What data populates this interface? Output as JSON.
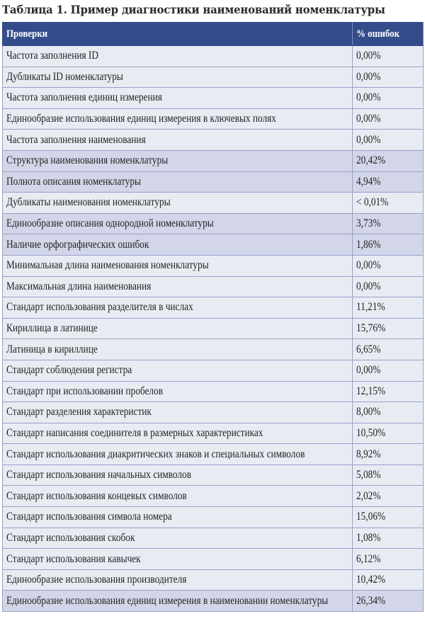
{
  "title": "Таблица 1. Пример диагностики наименований номенклатуры",
  "columns": [
    "Проверки",
    "% ошибок"
  ],
  "colors": {
    "header_bg": "#344c8b",
    "row_bg": "#e9ebf3",
    "highlight_row_bg": "#d3d6e8",
    "border": "#95a1cc"
  },
  "rows": [
    {
      "check": "Частота заполнения ID",
      "errors": "0,00%",
      "highlighted": false
    },
    {
      "check": "Дубликаты ID номенклатуры",
      "errors": "0,00%",
      "highlighted": false
    },
    {
      "check": "Частота заполнения единиц измерения",
      "errors": "0,00%",
      "highlighted": false
    },
    {
      "check": "Единообразие использования единиц измерения в ключевых полях",
      "errors": "0,00%",
      "highlighted": false
    },
    {
      "check": "Частота заполнения наименования",
      "errors": "0,00%",
      "highlighted": false
    },
    {
      "check": "Структура наименования номенклатуры",
      "errors": "20,42%",
      "highlighted": true
    },
    {
      "check": "Полнота описания номенклатуры",
      "errors": "4,94%",
      "highlighted": true
    },
    {
      "check": "Дубликаты наименования номенклатуры",
      "errors": "< 0,01%",
      "highlighted": false
    },
    {
      "check": "Единообразие описания однородной номенклатуры",
      "errors": "3,73%",
      "highlighted": true
    },
    {
      "check": "Наличие орфографических ошибок",
      "errors": "1,86%",
      "highlighted": true
    },
    {
      "check": "Минимальная длина наименования номенклатуры",
      "errors": "0,00%",
      "highlighted": false
    },
    {
      "check": "Максимальная длина наименования",
      "errors": "0,00%",
      "highlighted": false
    },
    {
      "check": "Стандарт использования разделителя в числах",
      "errors": "11,21%",
      "highlighted": false
    },
    {
      "check": "Кириллица в латинице",
      "errors": "15,76%",
      "highlighted": false
    },
    {
      "check": "Латиница в кириллице",
      "errors": "6,65%",
      "highlighted": false
    },
    {
      "check": "Стандарт соблюдения регистра",
      "errors": "0,00%",
      "highlighted": false
    },
    {
      "check": "Стандарт при использовании пробелов",
      "errors": "12,15%",
      "highlighted": false
    },
    {
      "check": "Стандарт разделения характеристик",
      "errors": "8,00%",
      "highlighted": false
    },
    {
      "check": "Стандарт написания соединителя в размерных характеристиках",
      "errors": "10,50%",
      "highlighted": false
    },
    {
      "check": "Стандарт использования диакритических знаков и специальных символов",
      "errors": "8,92%",
      "highlighted": false
    },
    {
      "check": "Стандарт использования начальных символов",
      "errors": "5,08%",
      "highlighted": false
    },
    {
      "check": "Стандарт использования концевых символов",
      "errors": "2,02%",
      "highlighted": false
    },
    {
      "check": "Стандарт использования символа номера",
      "errors": "15,06%",
      "highlighted": false
    },
    {
      "check": "Стандарт использования скобок",
      "errors": "1,08%",
      "highlighted": false
    },
    {
      "check": "Стандарт использования кавычек",
      "errors": "6,12%",
      "highlighted": false
    },
    {
      "check": "Единообразие использования производителя",
      "errors": "10,42%",
      "highlighted": false
    },
    {
      "check": "Единообразие использования единиц измерения в наименовании номенклатуры",
      "errors": "26,34%",
      "highlighted": true
    }
  ]
}
